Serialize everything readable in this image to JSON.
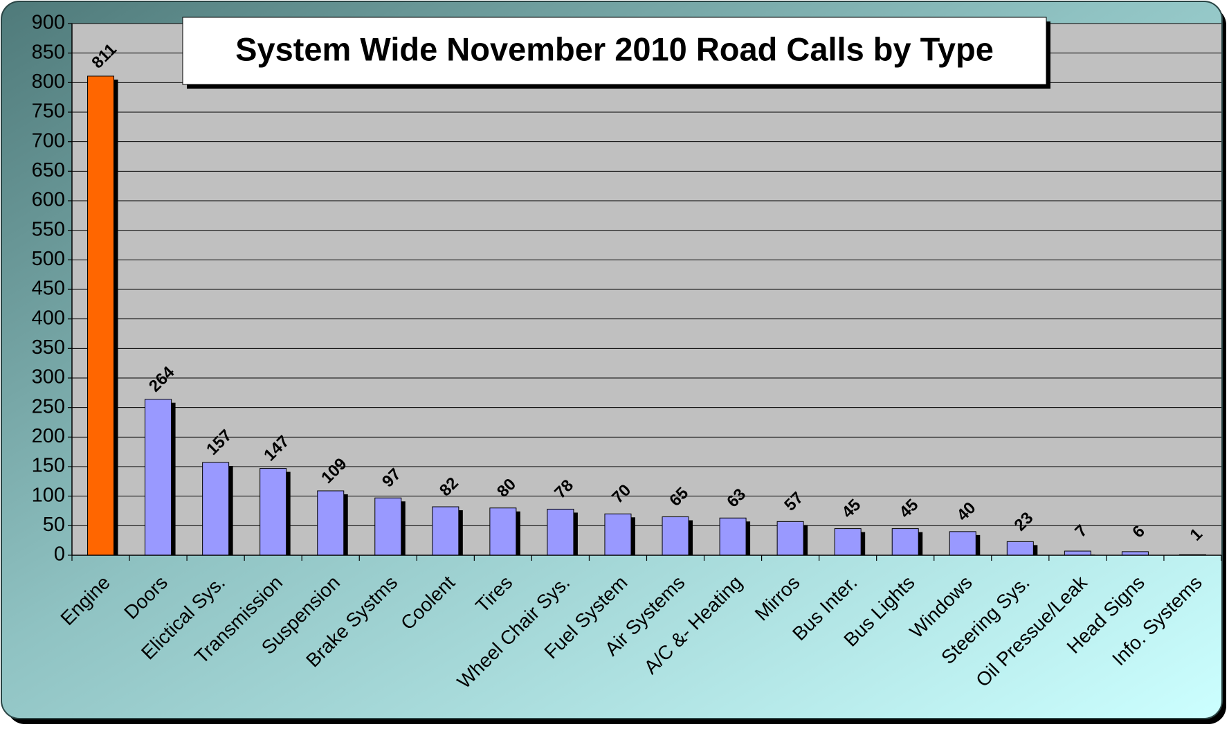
{
  "chart_data": {
    "type": "bar",
    "title": "System Wide November 2010 Road Calls by Type",
    "categories": [
      "Engine",
      "Doors",
      "Elictical Sys.",
      "Transmission",
      "Suspension",
      "Brake Systms",
      "Coolent",
      "Tires",
      "Wheel Chair Sys.",
      "Fuel System",
      "Air Systems",
      "A/C &- Heating",
      "Mirros",
      "Bus Inter.",
      "Bus Lights",
      "Windows",
      "Steering Sys.",
      "Oil Pressue/Leak",
      "Head Signs",
      "Info. Systems"
    ],
    "values": [
      811,
      264,
      157,
      147,
      109,
      97,
      82,
      80,
      78,
      70,
      65,
      63,
      57,
      45,
      45,
      40,
      23,
      7,
      6,
      1
    ],
    "colors": [
      "#ff6600",
      "#9999ff",
      "#9999ff",
      "#9999ff",
      "#9999ff",
      "#9999ff",
      "#9999ff",
      "#9999ff",
      "#9999ff",
      "#9999ff",
      "#9999ff",
      "#9999ff",
      "#9999ff",
      "#9999ff",
      "#9999ff",
      "#9999ff",
      "#9999ff",
      "#9999ff",
      "#9999ff",
      "#9999ff"
    ],
    "ylim": [
      0,
      900
    ],
    "yticks": [
      0,
      50,
      100,
      150,
      200,
      250,
      300,
      350,
      400,
      450,
      500,
      550,
      600,
      650,
      700,
      750,
      800,
      850,
      900
    ],
    "grid": true
  }
}
